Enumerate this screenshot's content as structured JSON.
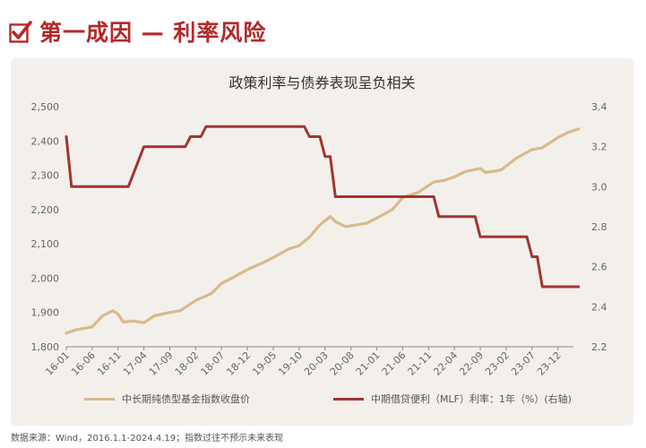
{
  "header": {
    "title": "第一成因 — 利率风险",
    "icon": "checkbox-check-icon"
  },
  "colors": {
    "accent": "#b5282a",
    "index_line": "#d9b98c",
    "mlf_line": "#a33430",
    "card_bg": "#f3f0ec"
  },
  "footnote": "数据来源：Wind，2016.1.1-2024.4.19；指数过往不预示未来表现",
  "chart_data": {
    "type": "line",
    "title": "政策利率与债券表现呈负相关",
    "x": [
      "16-01",
      "16-06",
      "16-11",
      "17-04",
      "17-09",
      "18-02",
      "18-07",
      "18-12",
      "19-05",
      "19-10",
      "20-03",
      "20-08",
      "21-01",
      "21-06",
      "21-11",
      "22-04",
      "22-09",
      "23-02",
      "23-07",
      "23-12"
    ],
    "y_left": {
      "ticks": [
        "1,800",
        "1,900",
        "2,000",
        "2,100",
        "2,200",
        "2,300",
        "2,400",
        "2,500"
      ],
      "ylim": [
        1800,
        2500
      ]
    },
    "y_right": {
      "ticks": [
        "2.2",
        "2.4",
        "2.6",
        "2.8",
        "3.0",
        "3.2",
        "3.4"
      ],
      "ylim": [
        2.2,
        3.4
      ]
    },
    "grid": false,
    "legend_position": "bottom",
    "series": [
      {
        "name": "中长期纯债型基金指数收盘价",
        "axis": "left",
        "points": [
          [
            "2016-01",
            1840
          ],
          [
            "2016-03",
            1850
          ],
          [
            "2016-06",
            1858
          ],
          [
            "2016-08",
            1890
          ],
          [
            "2016-10",
            1905
          ],
          [
            "2016-11",
            1895
          ],
          [
            "2016-12",
            1872
          ],
          [
            "2017-02",
            1875
          ],
          [
            "2017-04",
            1870
          ],
          [
            "2017-06",
            1890
          ],
          [
            "2017-09",
            1900
          ],
          [
            "2017-11",
            1905
          ],
          [
            "2018-02",
            1935
          ],
          [
            "2018-05",
            1955
          ],
          [
            "2018-07",
            1985
          ],
          [
            "2018-09",
            2000
          ],
          [
            "2018-12",
            2025
          ],
          [
            "2019-03",
            2045
          ],
          [
            "2019-05",
            2060
          ],
          [
            "2019-08",
            2085
          ],
          [
            "2019-10",
            2095
          ],
          [
            "2019-12",
            2120
          ],
          [
            "2020-02",
            2155
          ],
          [
            "2020-04",
            2180
          ],
          [
            "2020-05",
            2165
          ],
          [
            "2020-07",
            2150
          ],
          [
            "2020-09",
            2155
          ],
          [
            "2020-11",
            2160
          ],
          [
            "2021-01",
            2175
          ],
          [
            "2021-04",
            2200
          ],
          [
            "2021-06",
            2235
          ],
          [
            "2021-09",
            2250
          ],
          [
            "2021-12",
            2280
          ],
          [
            "2022-02",
            2285
          ],
          [
            "2022-04",
            2295
          ],
          [
            "2022-06",
            2310
          ],
          [
            "2022-09",
            2320
          ],
          [
            "2022-10",
            2308
          ],
          [
            "2023-01",
            2315
          ],
          [
            "2023-04",
            2350
          ],
          [
            "2023-07",
            2375
          ],
          [
            "2023-09",
            2380
          ],
          [
            "2023-12",
            2410
          ],
          [
            "2024-02",
            2425
          ],
          [
            "2024-04",
            2435
          ]
        ]
      },
      {
        "name": "中期借贷便利（MLF）利率：1年（%）(右轴)",
        "axis": "right",
        "points": [
          [
            "2016-01",
            3.25
          ],
          [
            "2016-02",
            3.0
          ],
          [
            "2017-01",
            3.0
          ],
          [
            "2017-04",
            3.2
          ],
          [
            "2017-12",
            3.2
          ],
          [
            "2018-01",
            3.25
          ],
          [
            "2018-03",
            3.25
          ],
          [
            "2018-04",
            3.3
          ],
          [
            "2019-11",
            3.3
          ],
          [
            "2019-12",
            3.25
          ],
          [
            "2020-02",
            3.25
          ],
          [
            "2020-03",
            3.15
          ],
          [
            "2020-04",
            3.15
          ],
          [
            "2020-05",
            2.95
          ],
          [
            "2021-12",
            2.95
          ],
          [
            "2022-01",
            2.85
          ],
          [
            "2022-08",
            2.85
          ],
          [
            "2022-09",
            2.75
          ],
          [
            "2023-06",
            2.75
          ],
          [
            "2023-07",
            2.65
          ],
          [
            "2023-08",
            2.65
          ],
          [
            "2023-09",
            2.5
          ],
          [
            "2024-04",
            2.5
          ]
        ]
      }
    ]
  }
}
